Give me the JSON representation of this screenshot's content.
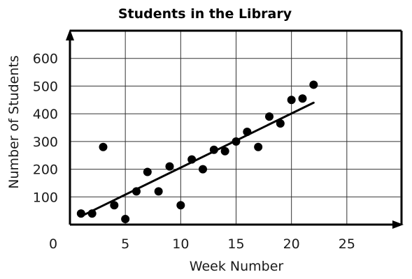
{
  "chart_data": {
    "type": "scatter",
    "title": "Students in the Library",
    "xlabel": "Week Number",
    "ylabel": "Number of Students",
    "origin_label": "0",
    "xlim": [
      0,
      30
    ],
    "ylim": [
      0,
      700
    ],
    "x_ticks": [
      5,
      10,
      15,
      20,
      25
    ],
    "y_ticks": [
      100,
      200,
      300,
      400,
      500,
      600
    ],
    "grid": true,
    "points": [
      {
        "x": 1,
        "y": 40
      },
      {
        "x": 2,
        "y": 40
      },
      {
        "x": 3,
        "y": 280
      },
      {
        "x": 4,
        "y": 70
      },
      {
        "x": 5,
        "y": 20
      },
      {
        "x": 6,
        "y": 120
      },
      {
        "x": 7,
        "y": 190
      },
      {
        "x": 8,
        "y": 120
      },
      {
        "x": 9,
        "y": 210
      },
      {
        "x": 10,
        "y": 70
      },
      {
        "x": 11,
        "y": 235
      },
      {
        "x": 12,
        "y": 200
      },
      {
        "x": 13,
        "y": 270
      },
      {
        "x": 14,
        "y": 265
      },
      {
        "x": 15,
        "y": 300
      },
      {
        "x": 16,
        "y": 335
      },
      {
        "x": 17,
        "y": 280
      },
      {
        "x": 18,
        "y": 390
      },
      {
        "x": 19,
        "y": 365
      },
      {
        "x": 20,
        "y": 450
      },
      {
        "x": 21,
        "y": 455
      },
      {
        "x": 22,
        "y": 505
      }
    ],
    "trend_line": {
      "x1": 1,
      "y1": 30,
      "x2": 22,
      "y2": 440
    },
    "colors": {
      "points": "#000000",
      "axes": "#000000",
      "grid": "#333333",
      "text": "#1a1a1a"
    }
  }
}
